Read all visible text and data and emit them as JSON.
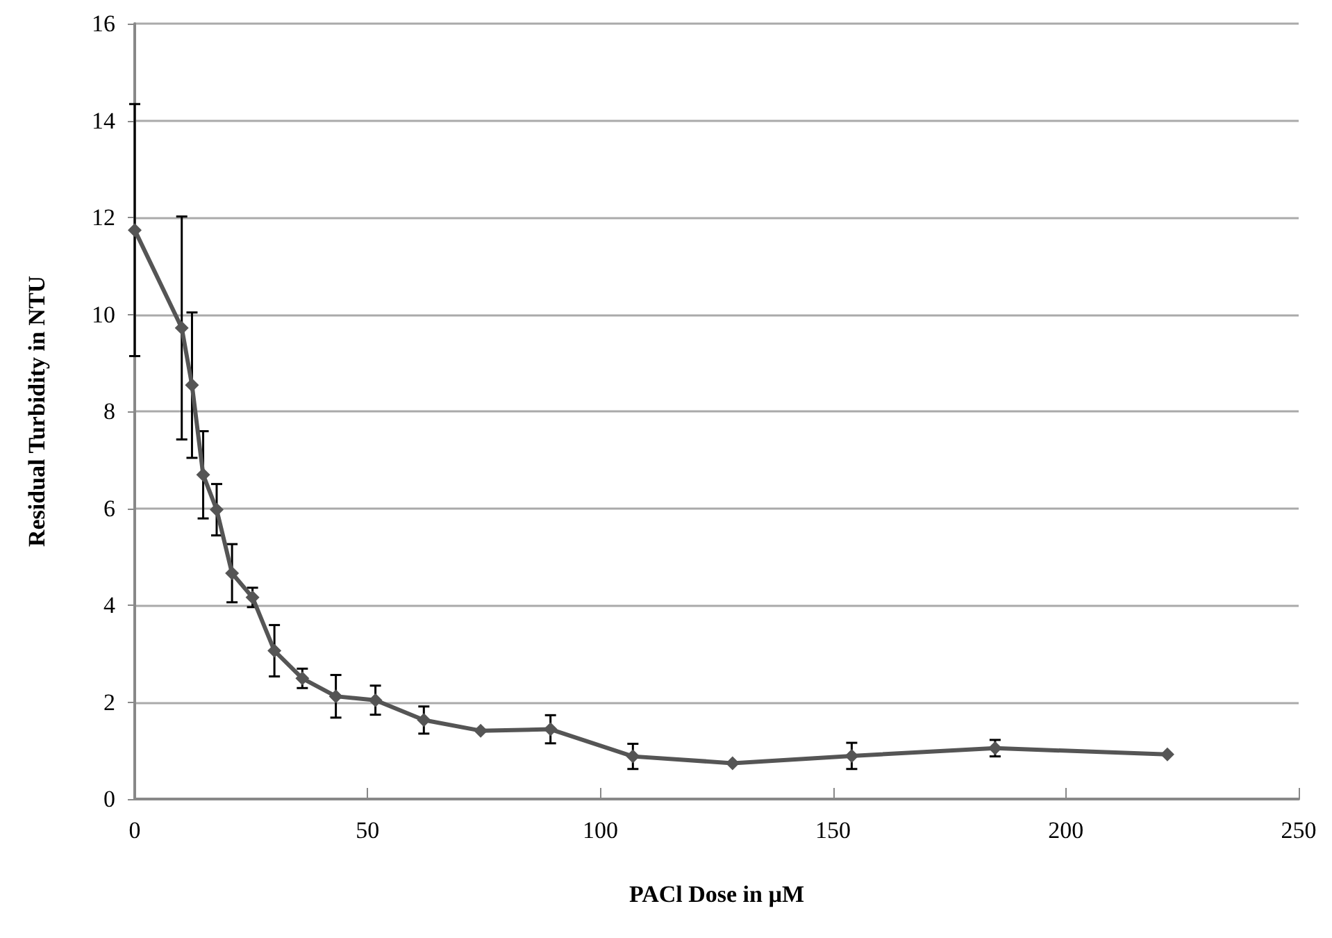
{
  "chart_data": {
    "type": "line",
    "xlabel": "PACl Dose in µM",
    "ylabel": "Residual Turbidity in NTU",
    "x": [
      0,
      10.1,
      12.3,
      14.7,
      17.6,
      20.9,
      25.3,
      30.0,
      36.0,
      43.2,
      51.7,
      62.1,
      74.3,
      89.3,
      107.0,
      128.4,
      154.0,
      184.8,
      221.8
    ],
    "values": [
      11.74,
      9.72,
      8.54,
      6.69,
      5.97,
      4.66,
      4.16,
      3.06,
      2.49,
      2.12,
      2.04,
      1.63,
      1.41,
      1.44,
      0.88,
      0.74,
      0.89,
      1.05,
      0.92
    ],
    "errors": [
      2.6,
      2.3,
      1.5,
      0.9,
      0.53,
      0.6,
      0.2,
      0.53,
      0.2,
      0.44,
      0.3,
      0.28,
      null,
      0.29,
      0.26,
      null,
      0.27,
      0.17,
      null
    ],
    "color": "#555555",
    "marker": "diamond",
    "line_style": "solid",
    "xlim": [
      0,
      250
    ],
    "xticks": [
      0,
      50,
      100,
      150,
      200,
      250
    ],
    "ylim": [
      0,
      16
    ],
    "yticks": [
      0,
      2,
      4,
      6,
      8,
      10,
      12,
      14,
      16
    ],
    "grid": "y"
  }
}
